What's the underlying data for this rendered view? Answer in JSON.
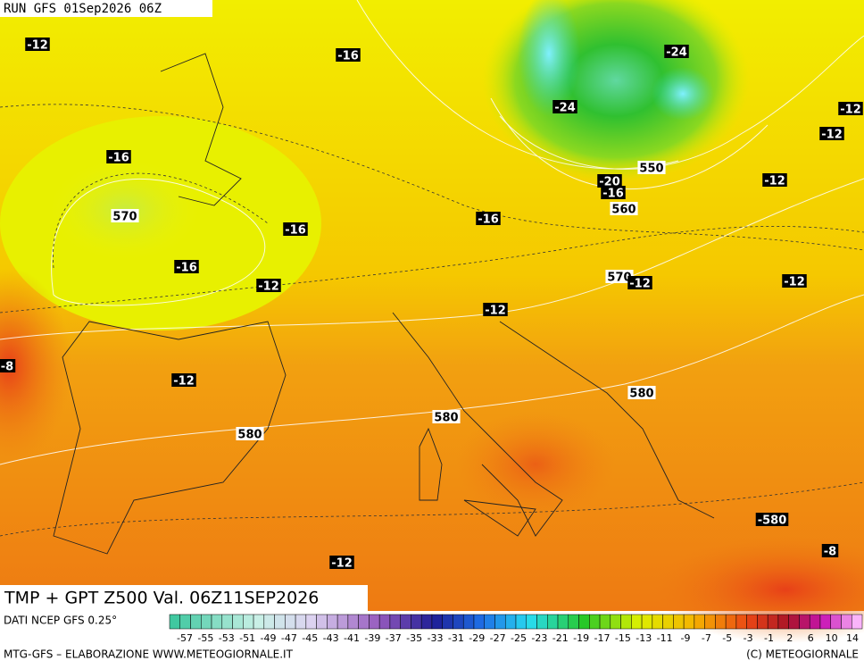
{
  "header": {
    "run": "RUN GFS 01Sep2026 06Z"
  },
  "map": {
    "labels": [
      "-12",
      "-16",
      "-24",
      "-12",
      "-12",
      "-24",
      "-16",
      "550",
      "-20",
      "-16",
      "-12",
      "570",
      "-16",
      "560",
      "-16",
      "-16",
      "-12",
      "570",
      "-12",
      "-12",
      "-12",
      "-8",
      "-12",
      "580",
      "580",
      "580",
      "-580",
      "-12",
      "-8"
    ]
  },
  "footer": {
    "title": "TMP + GPT Z500 Val. 06Z11SEP2026",
    "source": "DATI NCEP GFS 0.25°",
    "credit_left": "MTG-GFS – ELABORAZIONE WWW.METEOGIORNALE.IT",
    "credit_right": "(C) METEOGIORNALE",
    "scale": [
      "-57",
      "-55",
      "-53",
      "-51",
      "-49",
      "-47",
      "-45",
      "-43",
      "-41",
      "-39",
      "-37",
      "-35",
      "-33",
      "-31",
      "-29",
      "-27",
      "-25",
      "-23",
      "-21",
      "-19",
      "-17",
      "-15",
      "-13",
      "-11",
      "-9",
      "-7",
      "-5",
      "-3",
      "-1",
      "2",
      "6",
      "10",
      "14"
    ]
  }
}
